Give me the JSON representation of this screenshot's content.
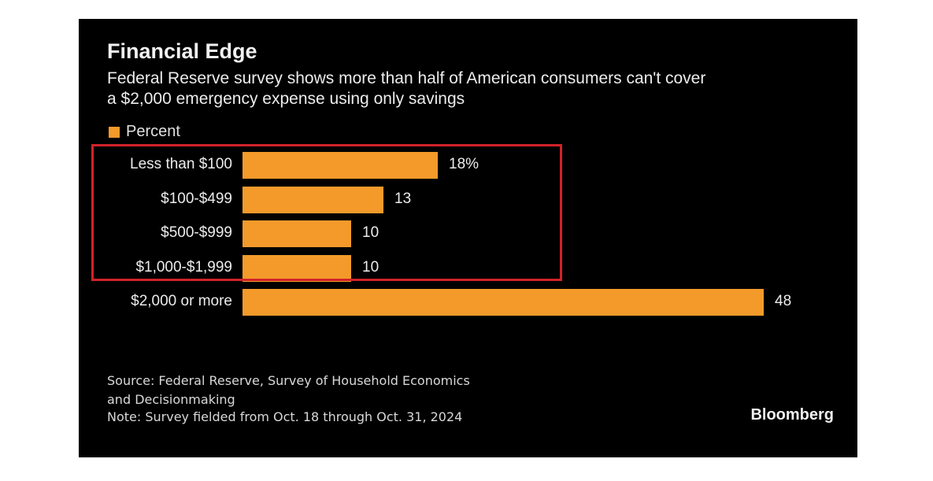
{
  "header": {
    "title": "Financial Edge",
    "subtitle_line1": "Federal Reserve survey shows more than half of American consumers can't cover",
    "subtitle_line2": "a $2,000 emergency expense using only savings"
  },
  "legend": {
    "label": "Percent",
    "color": "#f39a2b"
  },
  "chart_data": {
    "type": "bar",
    "orientation": "horizontal",
    "title": "Financial Edge",
    "categories": [
      "Less than $100",
      "$100-$499",
      "$500-$999",
      "$1,000-$1,999",
      "$2,000 or more"
    ],
    "values": [
      18,
      13,
      10,
      10,
      48
    ],
    "value_labels": [
      "18%",
      "13",
      "10",
      "10",
      "48"
    ],
    "series": [
      {
        "name": "Percent",
        "values": [
          18,
          13,
          10,
          10,
          48
        ]
      }
    ],
    "xlabel": "",
    "ylabel": "",
    "xlim": [
      0,
      48
    ],
    "grid": false,
    "legend_position": "top-left",
    "highlighted_categories": [
      "Less than $100",
      "$100-$499",
      "$500-$999",
      "$1,000-$1,999"
    ]
  },
  "colors": {
    "background": "#000000",
    "bar": "#f39a2b",
    "highlight": "#d1222a",
    "text": "#ececec"
  },
  "footer": {
    "source_line1": "Source: Federal Reserve, Survey of Household Economics",
    "source_line2": "and Decisionmaking",
    "note": "Note: Survey fielded from Oct. 18 through Oct. 31, 2024",
    "brand": "Bloomberg"
  }
}
